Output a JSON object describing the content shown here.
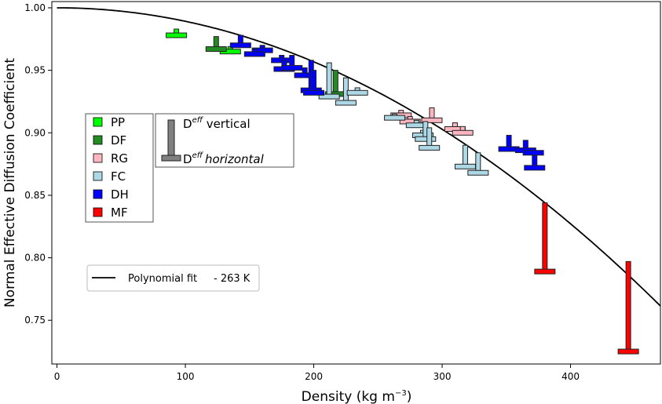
{
  "chart_data": {
    "type": "scatter",
    "xlabel_main": "Density (kg m",
    "xlabel_sup": "−3",
    "xlabel_end": ")",
    "ylabel": "Normal Effective Diffusion Coefficient",
    "xlim": [
      -4,
      470
    ],
    "ylim": [
      0.715,
      1.005
    ],
    "x_ticks": [
      0,
      100,
      200,
      300,
      400
    ],
    "x_tick_labels": [
      "0",
      "100",
      "200",
      "300",
      "400"
    ],
    "y_ticks": [
      0.75,
      0.8,
      0.85,
      0.9,
      0.95,
      1.0
    ],
    "y_tick_labels": [
      "0.75",
      "0.80",
      "0.85",
      "0.90",
      "0.95",
      "1.00"
    ],
    "grid": false,
    "colors": {
      "PP": "#00ff00",
      "DF": "#228b22",
      "RG": "#ffb6c1",
      "FC": "#add8e6",
      "DH": "#0000ff",
      "MF": "#ff0000",
      "fit": "#000000",
      "marker_key": "#808080"
    },
    "legend_classes": {
      "placement": "center-left",
      "entries": [
        {
          "code": "PP",
          "label": "PP"
        },
        {
          "code": "DF",
          "label": "DF"
        },
        {
          "code": "RG",
          "label": "RG"
        },
        {
          "code": "FC",
          "label": "FC"
        },
        {
          "code": "DH",
          "label": "DH"
        },
        {
          "code": "MF",
          "label": "MF"
        }
      ]
    },
    "legend_marker": {
      "vertical_text": "D",
      "vertical_sup": "eff",
      "vertical_suffix": " vertical",
      "horizontal_text": "D",
      "horizontal_sup": "eff",
      "horizontal_suffix": "horizontal"
    },
    "legend_fit": {
      "label": "Polynomial fit",
      "note": "- 263 K"
    },
    "fit_curve": {
      "coefficients": [
        1.0,
        0.0,
        -1.08e-06
      ],
      "x_range": [
        0,
        470
      ]
    },
    "series": [
      {
        "class": "PP",
        "points": [
          {
            "x": 93,
            "v": 0.983,
            "h": 0.978
          },
          {
            "x": 135,
            "v": 0.969,
            "h": 0.965
          }
        ]
      },
      {
        "class": "DF",
        "points": [
          {
            "x": 124,
            "v": 0.977,
            "h": 0.967
          },
          {
            "x": 217,
            "v": 0.95,
            "h": 0.931
          }
        ]
      },
      {
        "class": "RG",
        "points": [
          {
            "x": 268,
            "v": 0.918,
            "h": 0.914
          },
          {
            "x": 275,
            "v": 0.913,
            "h": 0.909
          },
          {
            "x": 292,
            "v": 0.92,
            "h": 0.91
          },
          {
            "x": 310,
            "v": 0.908,
            "h": 0.903
          },
          {
            "x": 316,
            "v": 0.905,
            "h": 0.9
          }
        ]
      },
      {
        "class": "FC",
        "points": [
          {
            "x": 212,
            "v": 0.956,
            "h": 0.929
          },
          {
            "x": 225,
            "v": 0.944,
            "h": 0.924
          },
          {
            "x": 234,
            "v": 0.936,
            "h": 0.932
          },
          {
            "x": 263,
            "v": 0.915,
            "h": 0.912
          },
          {
            "x": 280,
            "v": 0.91,
            "h": 0.906
          },
          {
            "x": 285,
            "v": 0.902,
            "h": 0.898
          },
          {
            "x": 287,
            "v": 0.909,
            "h": 0.895
          },
          {
            "x": 290,
            "v": 0.904,
            "h": 0.888
          },
          {
            "x": 318,
            "v": 0.89,
            "h": 0.873
          },
          {
            "x": 328,
            "v": 0.884,
            "h": 0.868
          }
        ]
      },
      {
        "class": "DH",
        "points": [
          {
            "x": 143,
            "v": 0.978,
            "h": 0.97
          },
          {
            "x": 160,
            "v": 0.97,
            "h": 0.966
          },
          {
            "x": 154,
            "v": 0.967,
            "h": 0.963
          },
          {
            "x": 175,
            "v": 0.962,
            "h": 0.958
          },
          {
            "x": 177,
            "v": 0.958,
            "h": 0.951
          },
          {
            "x": 183,
            "v": 0.962,
            "h": 0.952
          },
          {
            "x": 193,
            "v": 0.952,
            "h": 0.946
          },
          {
            "x": 198,
            "v": 0.958,
            "h": 0.934
          },
          {
            "x": 200,
            "v": 0.95,
            "h": 0.932
          },
          {
            "x": 352,
            "v": 0.898,
            "h": 0.887
          },
          {
            "x": 365,
            "v": 0.894,
            "h": 0.886
          },
          {
            "x": 371,
            "v": 0.886,
            "h": 0.884
          },
          {
            "x": 372,
            "v": 0.882,
            "h": 0.872
          }
        ]
      },
      {
        "class": "MF",
        "points": [
          {
            "x": 380,
            "v": 0.844,
            "h": 0.789
          },
          {
            "x": 445,
            "v": 0.797,
            "h": 0.725
          }
        ]
      }
    ]
  }
}
